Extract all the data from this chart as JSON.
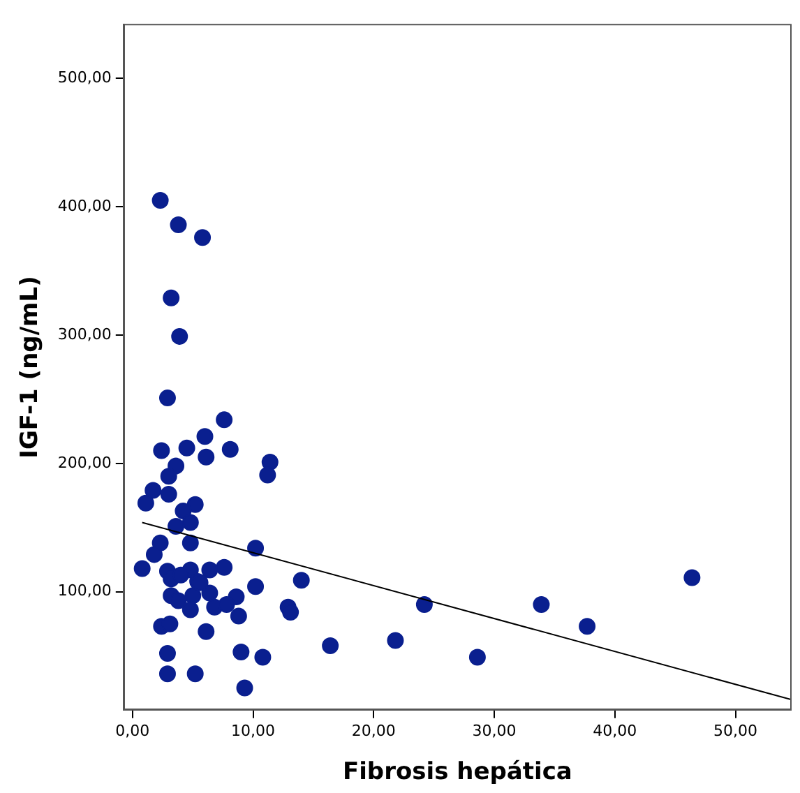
{
  "chart_data": {
    "type": "scatter",
    "xlabel": "Fibrosis hepática",
    "ylabel": "IGF-1 (ng/mL)",
    "xlim": [
      -0.7,
      54.6
    ],
    "ylim": [
      8,
      542
    ],
    "xticks": [
      {
        "value": 0,
        "label": "0,00"
      },
      {
        "value": 10,
        "label": "10,00"
      },
      {
        "value": 20,
        "label": "20,00"
      },
      {
        "value": 30,
        "label": "30,00"
      },
      {
        "value": 40,
        "label": "40,00"
      },
      {
        "value": 50,
        "label": "50,00"
      }
    ],
    "yticks": [
      {
        "value": 100,
        "label": "100,00"
      },
      {
        "value": 200,
        "label": "200,00"
      },
      {
        "value": 300,
        "label": "300,00"
      },
      {
        "value": 400,
        "label": "400,00"
      },
      {
        "value": 500,
        "label": "500,00"
      }
    ],
    "grid": false,
    "legend": false,
    "marker": "circle",
    "series": [
      {
        "color": "#0a1f8f",
        "x": [
          2.3,
          3.8,
          5.8,
          3.2,
          3.9,
          2.9,
          7.6,
          6.0,
          2.4,
          4.5,
          8.1,
          6.1,
          11.4,
          11.2,
          3.6,
          3.0,
          1.7,
          1.1,
          3.0,
          5.2,
          4.2,
          4.8,
          3.6,
          4.8,
          2.3,
          10.2,
          1.8,
          0.8,
          2.9,
          3.2,
          4.8,
          6.4,
          7.6,
          5.4,
          3.2,
          5.0,
          6.4,
          6.8,
          4.8,
          10.2,
          8.6,
          8.8,
          14.0,
          12.9,
          13.1,
          24.2,
          33.9,
          37.7,
          46.4,
          16.4,
          21.8,
          28.6,
          2.4,
          3.1,
          6.1,
          2.9,
          9.0,
          10.8,
          2.9,
          5.2,
          9.3,
          4.0,
          5.6,
          3.8,
          7.8
        ],
        "values": [
          405,
          386,
          376,
          329,
          299,
          251,
          234,
          221,
          210,
          212,
          211,
          205,
          201,
          191,
          198,
          190,
          179,
          169,
          176,
          168,
          163,
          154,
          151,
          138,
          138,
          134,
          129,
          118,
          116,
          110,
          117,
          117,
          119,
          108,
          97,
          97,
          99,
          88,
          86,
          104,
          96,
          81,
          109,
          88,
          84,
          90,
          90,
          73,
          111,
          58,
          62,
          49,
          73,
          75,
          69,
          52,
          53,
          49,
          36,
          36,
          25,
          113,
          107,
          93,
          90
        ]
      },
      {
        "type": "line",
        "color": "#000000",
        "marker": "none",
        "x": [
          0.8,
          54.6
        ],
        "values": [
          154,
          16
        ]
      }
    ]
  }
}
